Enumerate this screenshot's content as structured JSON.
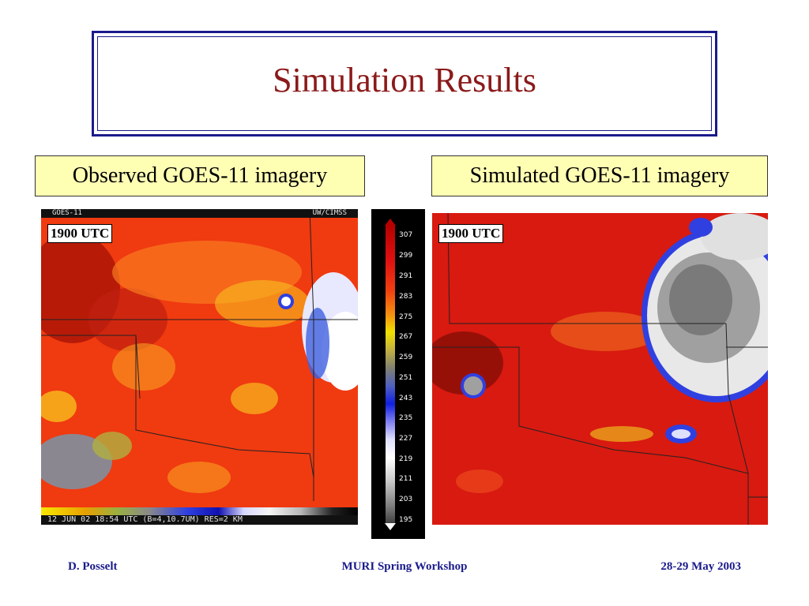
{
  "slide": {
    "title": "Simulation Results"
  },
  "captions": {
    "observed": "Observed GOES-11 imagery",
    "simulated": "Simulated GOES-11 imagery"
  },
  "observed_panel": {
    "header_left": "GOES-11",
    "header_right": "UW/CIMSS",
    "time_label": "1900 UTC",
    "footer": "12 JUN 02 18:54 UTC (B=4,10.7UM) RES=2 KM"
  },
  "simulated_panel": {
    "time_label": "1900 UTC"
  },
  "legend": {
    "ticks": [
      "307",
      "299",
      "291",
      "283",
      "275",
      "267",
      "259",
      "251",
      "243",
      "235",
      "227",
      "219",
      "211",
      "203",
      "195"
    ]
  },
  "footer": {
    "author": "D. Posselt",
    "event": "MURI Spring Workshop",
    "date": "28-29 May 2003"
  },
  "colors": {
    "title": "#8b1a1a",
    "frame": "#1a1a8c",
    "caption_bg": "#ffffb4",
    "footer_text": "#1a1a8c"
  }
}
